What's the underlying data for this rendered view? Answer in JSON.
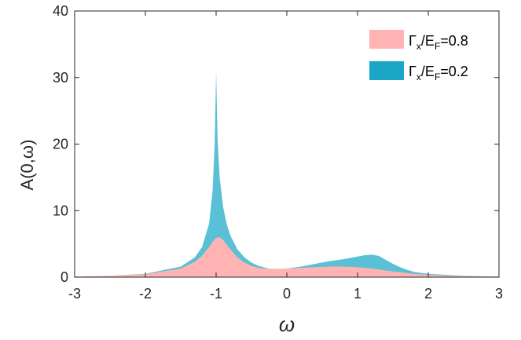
{
  "chart_data": {
    "type": "area",
    "xlabel": "ω",
    "ylabel": "A(0,ω)",
    "xlim": [
      -3,
      3
    ],
    "ylim": [
      0,
      40
    ],
    "xticks": [
      "-3",
      "-2",
      "-1",
      "0",
      "1",
      "2",
      "3"
    ],
    "yticks": [
      "0",
      "10",
      "20",
      "30",
      "40"
    ],
    "grid": false,
    "legend_position": "top-right",
    "series": [
      {
        "legend": {
          "main": "Γ",
          "sub1": "x",
          "mid": "/E",
          "sub2": "F",
          "tail": "=0.8"
        },
        "color": "#ffb3b3",
        "x": [
          -3.0,
          -2.5,
          -2.0,
          -1.5,
          -1.3,
          -1.2,
          -1.1,
          -1.05,
          -1.0,
          -0.95,
          -0.9,
          -0.85,
          -0.8,
          -0.7,
          -0.6,
          -0.5,
          -0.4,
          -0.3,
          -0.2,
          -0.1,
          0.0,
          0.2,
          0.4,
          0.6,
          0.8,
          1.0,
          1.2,
          1.4,
          1.6,
          1.8,
          2.0,
          2.5,
          3.0
        ],
        "y": [
          0.1,
          0.2,
          0.45,
          1.3,
          2.3,
          3.2,
          4.5,
          5.3,
          5.9,
          6.0,
          5.6,
          4.9,
          4.2,
          3.0,
          2.2,
          1.7,
          1.4,
          1.3,
          1.25,
          1.25,
          1.3,
          1.4,
          1.5,
          1.6,
          1.6,
          1.5,
          1.3,
          1.0,
          0.75,
          0.5,
          0.35,
          0.15,
          0.07
        ]
      },
      {
        "legend": {
          "main": "Γ",
          "sub1": "x",
          "mid": "/E",
          "sub2": "F",
          "tail": "=0.2"
        },
        "color": "#1aa7c6",
        "x": [
          -3.0,
          -2.5,
          -2.0,
          -1.5,
          -1.3,
          -1.2,
          -1.1,
          -1.05,
          -1.02,
          -1.0,
          -0.98,
          -0.95,
          -0.9,
          -0.85,
          -0.8,
          -0.7,
          -0.6,
          -0.5,
          -0.4,
          -0.3,
          -0.2,
          -0.1,
          0.0,
          0.2,
          0.4,
          0.6,
          0.8,
          1.0,
          1.1,
          1.2,
          1.3,
          1.4,
          1.5,
          1.6,
          1.7,
          1.8,
          2.0,
          2.5,
          3.0
        ],
        "y": [
          0.1,
          0.2,
          0.5,
          1.6,
          3.0,
          4.5,
          8.0,
          13.0,
          20.0,
          30.9,
          21.0,
          15.0,
          10.5,
          8.0,
          6.3,
          4.2,
          3.0,
          2.2,
          1.7,
          1.4,
          1.2,
          1.2,
          1.3,
          1.6,
          2.0,
          2.4,
          2.7,
          3.1,
          3.3,
          3.4,
          3.2,
          2.6,
          2.0,
          1.5,
          1.1,
          0.8,
          0.5,
          0.2,
          0.1
        ]
      }
    ]
  }
}
